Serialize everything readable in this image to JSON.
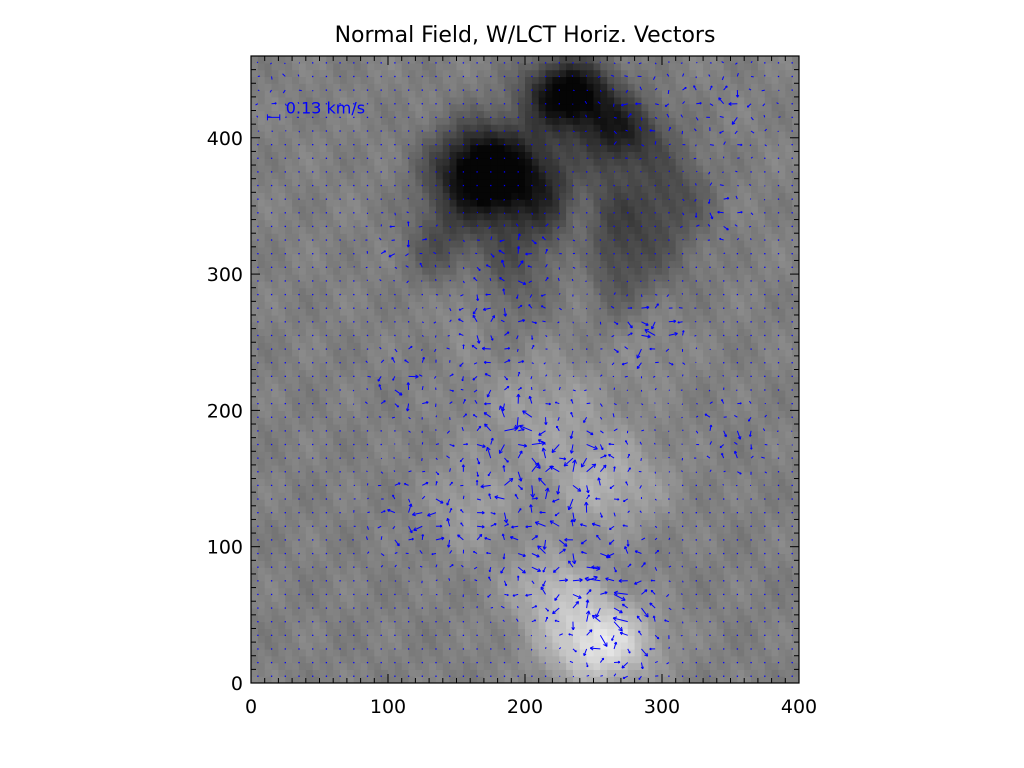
{
  "chart_data": {
    "type": "heatmap",
    "title": "Normal Field, W/LCT Horiz. Vectors",
    "xlabel": "",
    "ylabel": "",
    "xlim": [
      0,
      400
    ],
    "ylim": [
      0,
      460
    ],
    "x_ticks": [
      0,
      100,
      200,
      300,
      400
    ],
    "y_ticks": [
      0,
      100,
      200,
      300,
      400
    ],
    "x_minor_step": 10,
    "y_minor_step": 10,
    "grid": false,
    "colormap": "grayscale",
    "background_value": 0.5,
    "vector_color": "#0000ff",
    "vector_grid_step": 10,
    "reference_vector": {
      "label": "0.13 km/s",
      "x": 12,
      "y": 415,
      "length_data_units": 3
    },
    "field_features": [
      {
        "kind": "negative",
        "x": 232,
        "y": 433,
        "sx": 22,
        "sy": 18,
        "amp": -0.55
      },
      {
        "kind": "negative",
        "x": 270,
        "y": 405,
        "sx": 22,
        "sy": 18,
        "amp": -0.32
      },
      {
        "kind": "negative",
        "x": 170,
        "y": 375,
        "sx": 26,
        "sy": 24,
        "amp": -0.6
      },
      {
        "kind": "negative",
        "x": 220,
        "y": 360,
        "sx": 28,
        "sy": 30,
        "amp": -0.25
      },
      {
        "kind": "negative",
        "x": 270,
        "y": 320,
        "sx": 30,
        "sy": 40,
        "amp": -0.22
      },
      {
        "kind": "negative",
        "x": 310,
        "y": 360,
        "sx": 20,
        "sy": 25,
        "amp": -0.15
      },
      {
        "kind": "negative",
        "x": 140,
        "y": 320,
        "sx": 18,
        "sy": 22,
        "amp": -0.18
      },
      {
        "kind": "negative",
        "x": 185,
        "y": 300,
        "sx": 18,
        "sy": 28,
        "amp": -0.15
      },
      {
        "kind": "positive",
        "x": 255,
        "y": 30,
        "sx": 28,
        "sy": 22,
        "amp": 0.4
      },
      {
        "kind": "positive",
        "x": 220,
        "y": 70,
        "sx": 24,
        "sy": 20,
        "amp": 0.2
      },
      {
        "kind": "positive",
        "x": 260,
        "y": 145,
        "sx": 30,
        "sy": 25,
        "amp": 0.18
      },
      {
        "kind": "positive",
        "x": 160,
        "y": 130,
        "sx": 22,
        "sy": 25,
        "amp": 0.12
      },
      {
        "kind": "positive",
        "x": 215,
        "y": 200,
        "sx": 35,
        "sy": 30,
        "amp": 0.12
      },
      {
        "kind": "positive",
        "x": 240,
        "y": 335,
        "sx": 12,
        "sy": 40,
        "amp": 0.18
      },
      {
        "kind": "positive",
        "x": 160,
        "y": 285,
        "sx": 15,
        "sy": 25,
        "amp": 0.1
      },
      {
        "kind": "positive",
        "x": 290,
        "y": 255,
        "sx": 20,
        "sy": 25,
        "amp": 0.08
      }
    ],
    "flow_features": [
      {
        "x": 185,
        "y": 180,
        "r": 40,
        "strength": 1.0
      },
      {
        "x": 240,
        "y": 160,
        "r": 40,
        "strength": 0.9
      },
      {
        "x": 200,
        "y": 100,
        "r": 45,
        "strength": 0.8
      },
      {
        "x": 260,
        "y": 70,
        "r": 40,
        "strength": 1.0
      },
      {
        "x": 270,
        "y": 30,
        "r": 30,
        "strength": 0.7
      },
      {
        "x": 120,
        "y": 120,
        "r": 35,
        "strength": 0.8
      },
      {
        "x": 110,
        "y": 220,
        "r": 25,
        "strength": 0.8
      },
      {
        "x": 290,
        "y": 255,
        "r": 30,
        "strength": 0.9
      },
      {
        "x": 350,
        "y": 180,
        "r": 30,
        "strength": 0.7
      },
      {
        "x": 175,
        "y": 260,
        "r": 35,
        "strength": 0.7
      },
      {
        "x": 200,
        "y": 310,
        "r": 35,
        "strength": 0.6
      },
      {
        "x": 280,
        "y": 420,
        "r": 40,
        "strength": 0.5
      },
      {
        "x": 350,
        "y": 420,
        "r": 30,
        "strength": 0.7
      },
      {
        "x": 110,
        "y": 320,
        "r": 25,
        "strength": 0.6
      },
      {
        "x": 340,
        "y": 345,
        "r": 25,
        "strength": 0.6
      },
      {
        "x": 20,
        "y": 430,
        "r": 25,
        "strength": 0.4
      }
    ]
  }
}
